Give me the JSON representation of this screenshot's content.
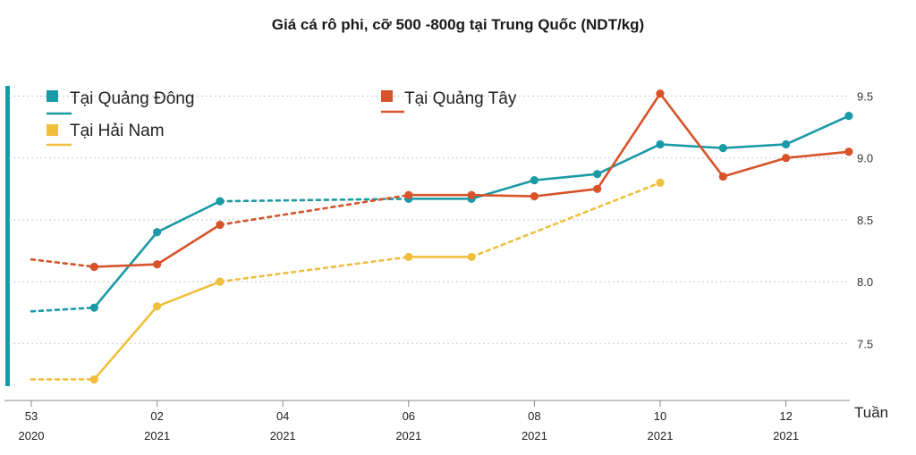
{
  "chart_data": {
    "type": "line",
    "title": "Giá cá rô phi, cỡ 500 -800g tại Trung Quốc (NDT/kg)",
    "xlabel": "Tuần",
    "ylabel": "",
    "ylim": [
      7.1,
      9.6
    ],
    "yticks": [
      "7.5",
      "8.0",
      "8.5",
      "9.0",
      "9.5"
    ],
    "xticks": [
      {
        "week": "53",
        "year": "2020"
      },
      {
        "week": "02",
        "year": "2021"
      },
      {
        "week": "04",
        "year": "2021"
      },
      {
        "week": "06",
        "year": "2021"
      },
      {
        "week": "08",
        "year": "2021"
      },
      {
        "week": "10",
        "year": "2021"
      },
      {
        "week": "12",
        "year": "2021"
      }
    ],
    "grid": true,
    "legend_position": "top-left",
    "series": [
      {
        "name": "Tại Quảng Đông",
        "color": "#1a9aa6",
        "points": [
          {
            "x": "53/2020",
            "y": 7.76,
            "marker": false,
            "dashed_in": false
          },
          {
            "x": "01/2021",
            "y": 7.79,
            "marker": true,
            "dashed_in": true
          },
          {
            "x": "02/2021",
            "y": 8.4,
            "marker": true,
            "dashed_in": false
          },
          {
            "x": "03/2021",
            "y": 8.65,
            "marker": true,
            "dashed_in": false
          },
          {
            "x": "06/2021",
            "y": 8.67,
            "marker": true,
            "dashed_in": true
          },
          {
            "x": "07/2021",
            "y": 8.67,
            "marker": true,
            "dashed_in": false
          },
          {
            "x": "08/2021",
            "y": 8.82,
            "marker": true,
            "dashed_in": false
          },
          {
            "x": "09/2021",
            "y": 8.87,
            "marker": true,
            "dashed_in": false
          },
          {
            "x": "10/2021",
            "y": 9.11,
            "marker": true,
            "dashed_in": false
          },
          {
            "x": "11/2021",
            "y": 9.08,
            "marker": true,
            "dashed_in": false
          },
          {
            "x": "12/2021",
            "y": 9.11,
            "marker": true,
            "dashed_in": false
          },
          {
            "x": "13/2021",
            "y": 9.34,
            "marker": true,
            "dashed_in": false
          }
        ]
      },
      {
        "name": "Tại Quảng Tây",
        "color": "#d7532a",
        "points": [
          {
            "x": "53/2020",
            "y": 8.18,
            "marker": false,
            "dashed_in": false
          },
          {
            "x": "01/2021",
            "y": 8.12,
            "marker": true,
            "dashed_in": true
          },
          {
            "x": "02/2021",
            "y": 8.14,
            "marker": true,
            "dashed_in": false
          },
          {
            "x": "03/2021",
            "y": 8.46,
            "marker": true,
            "dashed_in": false
          },
          {
            "x": "06/2021",
            "y": 8.7,
            "marker": true,
            "dashed_in": true
          },
          {
            "x": "07/2021",
            "y": 8.7,
            "marker": true,
            "dashed_in": false
          },
          {
            "x": "08/2021",
            "y": 8.69,
            "marker": true,
            "dashed_in": false
          },
          {
            "x": "09/2021",
            "y": 8.75,
            "marker": true,
            "dashed_in": false
          },
          {
            "x": "10/2021",
            "y": 9.52,
            "marker": true,
            "dashed_in": false
          },
          {
            "x": "11/2021",
            "y": 8.85,
            "marker": true,
            "dashed_in": false
          },
          {
            "x": "12/2021",
            "y": 9.0,
            "marker": true,
            "dashed_in": false
          },
          {
            "x": "13/2021",
            "y": 9.05,
            "marker": true,
            "dashed_in": false
          }
        ]
      },
      {
        "name": "Tại Hải Nam",
        "color": "#f0bf3c",
        "points": [
          {
            "x": "53/2020",
            "y": 7.21,
            "marker": false,
            "dashed_in": false
          },
          {
            "x": "01/2021",
            "y": 7.21,
            "marker": true,
            "dashed_in": true
          },
          {
            "x": "02/2021",
            "y": 7.8,
            "marker": true,
            "dashed_in": false
          },
          {
            "x": "03/2021",
            "y": 8.0,
            "marker": true,
            "dashed_in": false
          },
          {
            "x": "06/2021",
            "y": 8.2,
            "marker": true,
            "dashed_in": true
          },
          {
            "x": "07/2021",
            "y": 8.2,
            "marker": true,
            "dashed_in": false
          },
          {
            "x": "10/2021",
            "y": 8.8,
            "marker": true,
            "dashed_in": true
          }
        ]
      }
    ]
  }
}
